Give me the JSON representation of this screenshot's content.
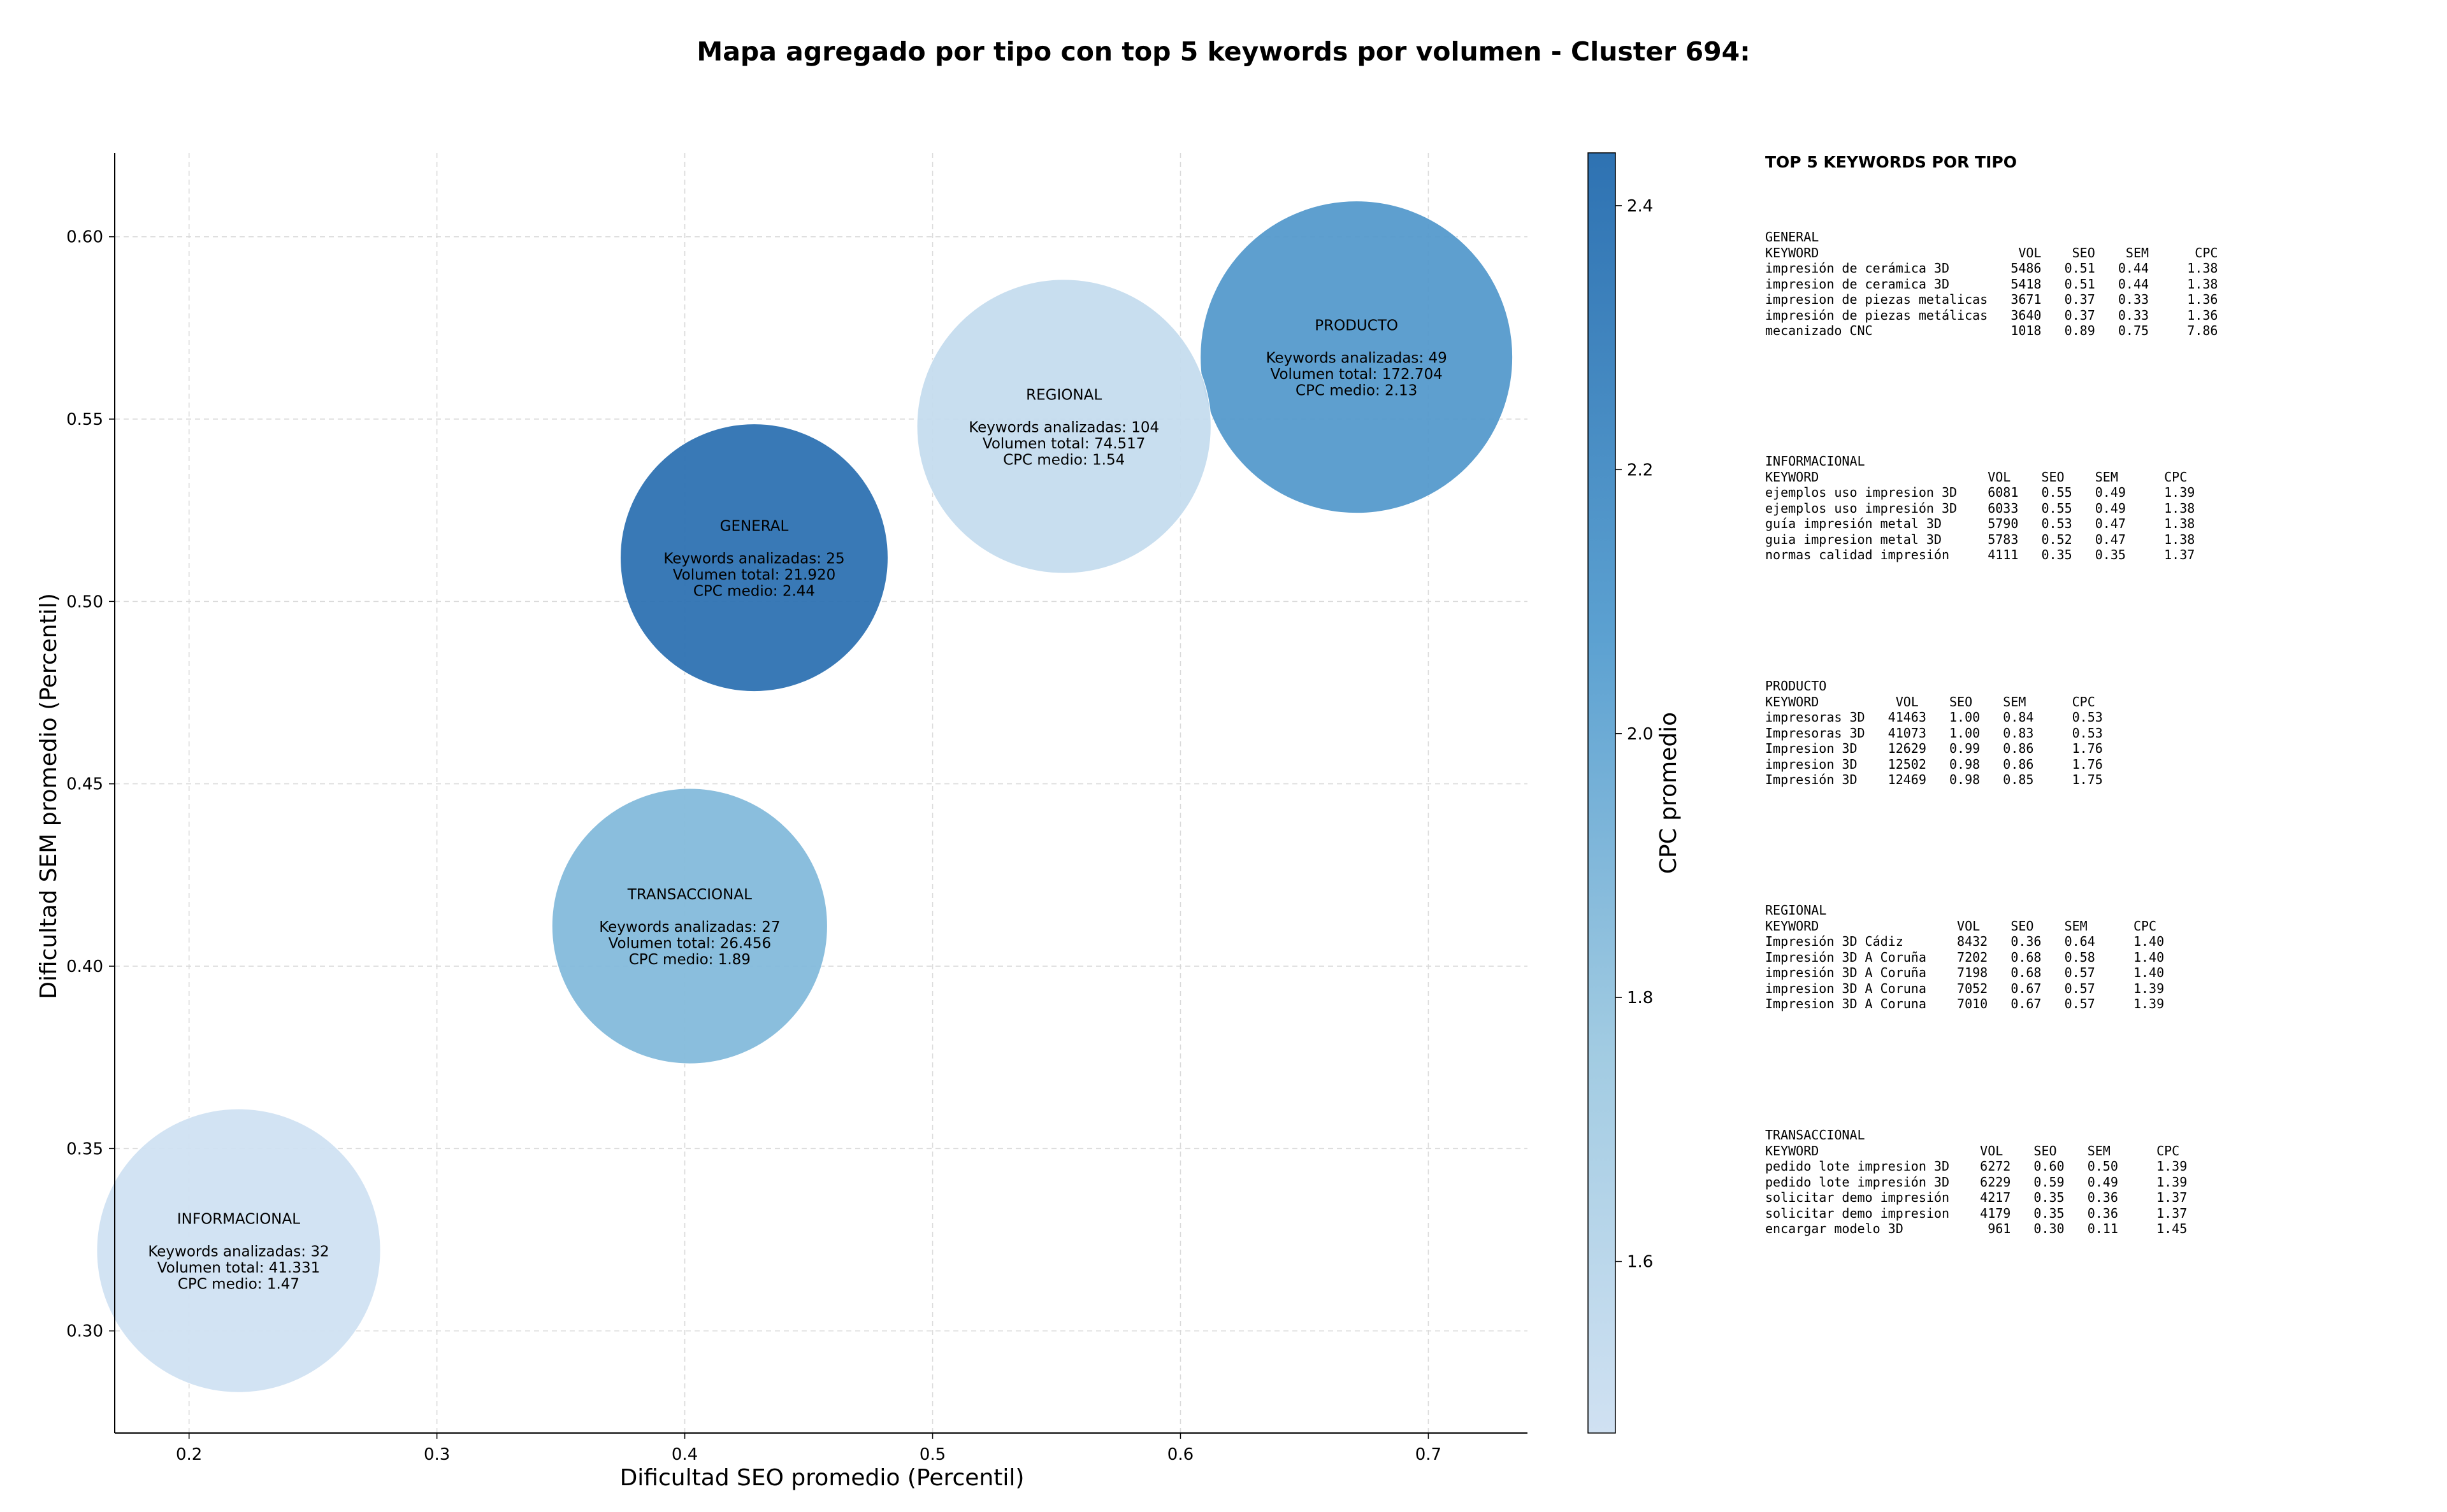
{
  "chart_data": {
    "type": "bubble",
    "title": "Mapa agregado por tipo con top 5 keywords por volumen - Cluster 694:",
    "xlabel": "Dificultad SEO promedio (Percentil)",
    "ylabel": "Dificultad SEM promedio (Percentil)",
    "xlim": [
      0.17,
      0.74
    ],
    "ylim": [
      0.272,
      0.623
    ],
    "xticks": [
      0.2,
      0.3,
      0.4,
      0.5,
      0.6,
      0.7
    ],
    "yticks": [
      0.3,
      0.35,
      0.4,
      0.45,
      0.5,
      0.55,
      0.6
    ],
    "grid": true,
    "colorbar": {
      "label": "CPC promedio",
      "min": 1.47,
      "max": 2.44,
      "ticks": [
        1.6,
        1.8,
        2.0,
        2.2,
        2.4
      ],
      "colormap": "Blues"
    },
    "bubbles": [
      {
        "name": "PRODUCTO",
        "x": 0.671,
        "y": 0.567,
        "size": 172704,
        "cpc": 2.13,
        "lines": [
          "Keywords analizadas: 49",
          "Volumen total: 172.704",
          "CPC medio: 2.13"
        ]
      },
      {
        "name": "REGIONAL",
        "x": 0.553,
        "y": 0.548,
        "size": 74517,
        "cpc": 1.54,
        "lines": [
          "Keywords analizadas: 104",
          "Volumen total: 74.517",
          "CPC medio: 1.54"
        ]
      },
      {
        "name": "GENERAL",
        "x": 0.428,
        "y": 0.512,
        "size": 21920,
        "cpc": 2.44,
        "lines": [
          "Keywords analizadas: 25",
          "Volumen total: 21.920",
          "CPC medio: 2.44"
        ]
      },
      {
        "name": "TRANSACCIONAL",
        "x": 0.402,
        "y": 0.411,
        "size": 26456,
        "cpc": 1.89,
        "lines": [
          "Keywords analizadas: 27",
          "Volumen total: 26.456",
          "CPC medio: 1.89"
        ]
      },
      {
        "name": "INFORMACIONAL",
        "x": 0.22,
        "y": 0.322,
        "size": 41331,
        "cpc": 1.47,
        "lines": [
          "Keywords analizadas: 32",
          "Volumen total: 41.331",
          "CPC medio: 1.47"
        ]
      }
    ]
  },
  "side_panel": {
    "title": "TOP 5 KEYWORDS POR TIPO",
    "groups": [
      {
        "name": "GENERAL",
        "text": "KEYWORD                          VOL    SEO    SEM      CPC\nimpresión de cerámica 3D        5486   0.51   0.44     1.38\nimpresion de ceramica 3D        5418   0.51   0.44     1.38\nimpresion de piezas metalicas   3671   0.37   0.33     1.36\nimpresión de piezas metálicas   3640   0.37   0.33     1.36\nmecanizado CNC                  1018   0.89   0.75     7.86"
      },
      {
        "name": "INFORMACIONAL",
        "text": "KEYWORD                      VOL    SEO    SEM      CPC\nejemplos uso impresion 3D    6081   0.55   0.49     1.39\nejemplos uso impresión 3D    6033   0.55   0.49     1.38\nguía impresión metal 3D      5790   0.53   0.47     1.38\nguia impresion metal 3D      5783   0.52   0.47     1.38\nnormas calidad impresión     4111   0.35   0.35     1.37"
      },
      {
        "name": "PRODUCTO",
        "text": "KEYWORD          VOL    SEO    SEM      CPC\nimpresoras 3D   41463   1.00   0.84     0.53\nImpresoras 3D   41073   1.00   0.83     0.53\nImpresion 3D    12629   0.99   0.86     1.76\nimpresion 3D    12502   0.98   0.86     1.76\nImpresión 3D    12469   0.98   0.85     1.75"
      },
      {
        "name": "REGIONAL",
        "text": "KEYWORD                  VOL    SEO    SEM      CPC\nImpresión 3D Cádiz       8432   0.36   0.64     1.40\nImpresión 3D A Coruña    7202   0.68   0.58     1.40\nimpresión 3D A Coruña    7198   0.68   0.57     1.40\nimpresion 3D A Coruna    7052   0.67   0.57     1.39\nImpresion 3D A Coruna    7010   0.67   0.57     1.39"
      },
      {
        "name": "TRANSACCIONAL",
        "text": "KEYWORD                     VOL    SEO    SEM      CPC\npedido lote impresion 3D    6272   0.60   0.50     1.39\npedido lote impresión 3D    6229   0.59   0.49     1.39\nsolicitar demo impresión    4217   0.35   0.36     1.37\nsolicitar demo impresion    4179   0.35   0.36     1.37\nencargar modelo 3D           961   0.30   0.11     1.45"
      }
    ]
  }
}
